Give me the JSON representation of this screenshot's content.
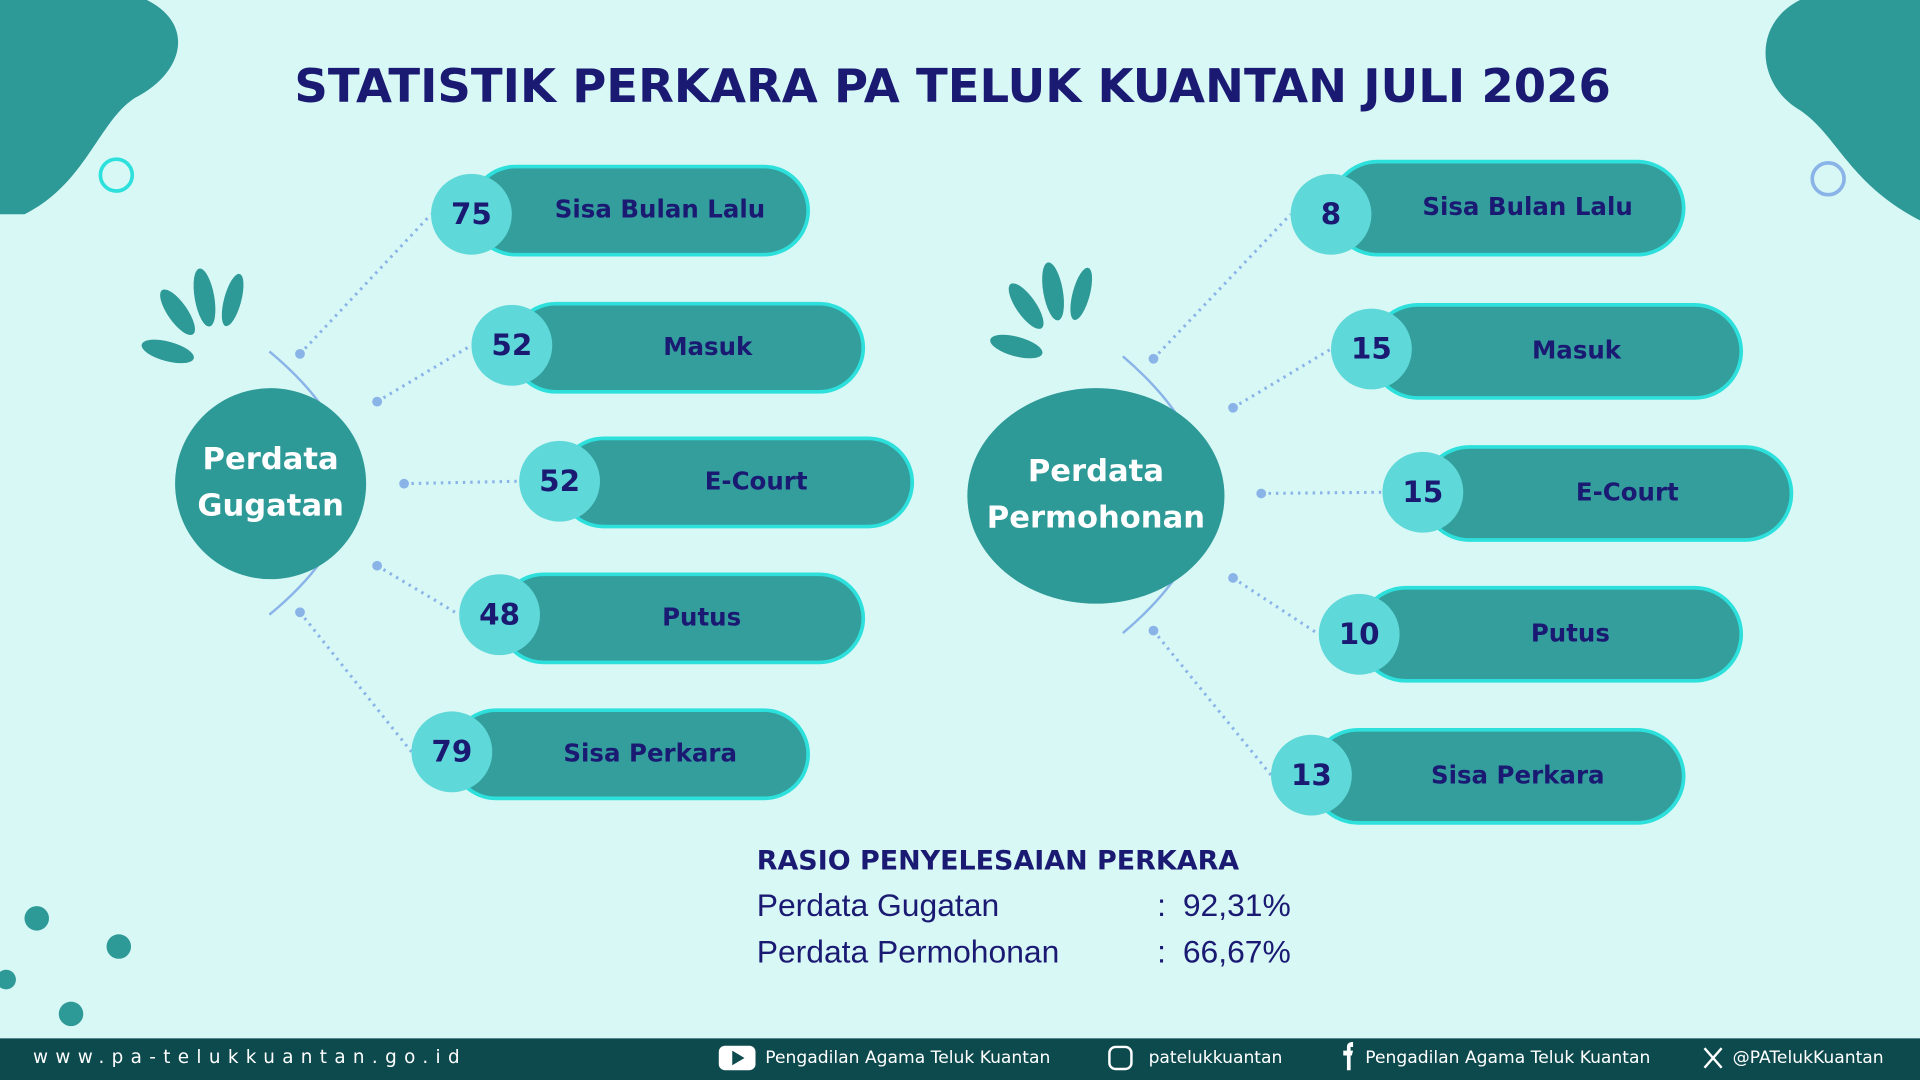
{
  "header": {
    "title": "STATISTIK PERKARA PA TELUK KUANTAN JULI 2026"
  },
  "groups": [
    {
      "label": [
        "Perdata",
        "Gugatan"
      ],
      "items": [
        {
          "value": 75,
          "label": "Sisa Bulan Lalu"
        },
        {
          "value": 52,
          "label": "Masuk"
        },
        {
          "value": 52,
          "label": "E-Court"
        },
        {
          "value": 48,
          "label": "Putus"
        },
        {
          "value": 79,
          "label": "Sisa Perkara"
        }
      ]
    },
    {
      "label": [
        "Perdata",
        "Permohonan"
      ],
      "items": [
        {
          "value": 8,
          "label": "Sisa Bulan Lalu"
        },
        {
          "value": 15,
          "label": "Masuk"
        },
        {
          "value": 15,
          "label": "E-Court"
        },
        {
          "value": 10,
          "label": "Putus"
        },
        {
          "value": 13,
          "label": "Sisa Perkara"
        }
      ]
    }
  ],
  "ratio": {
    "title": "RASIO PENYELESAIAN PERKARA",
    "rows": [
      {
        "label": "Perdata Gugatan",
        "sep": ":",
        "value": "92,31%"
      },
      {
        "label": "Perdata Permohonan",
        "sep": ":",
        "value": "66,67%"
      }
    ]
  },
  "footer": {
    "website": "www.pa-telukkuantan.go.id",
    "youtube": "Pengadilan Agama Teluk Kuantan",
    "instagram": "patelukkuantan",
    "facebook": "Pengadilan Agama Teluk Kuantan",
    "x": "@PATelukKuantan"
  }
}
